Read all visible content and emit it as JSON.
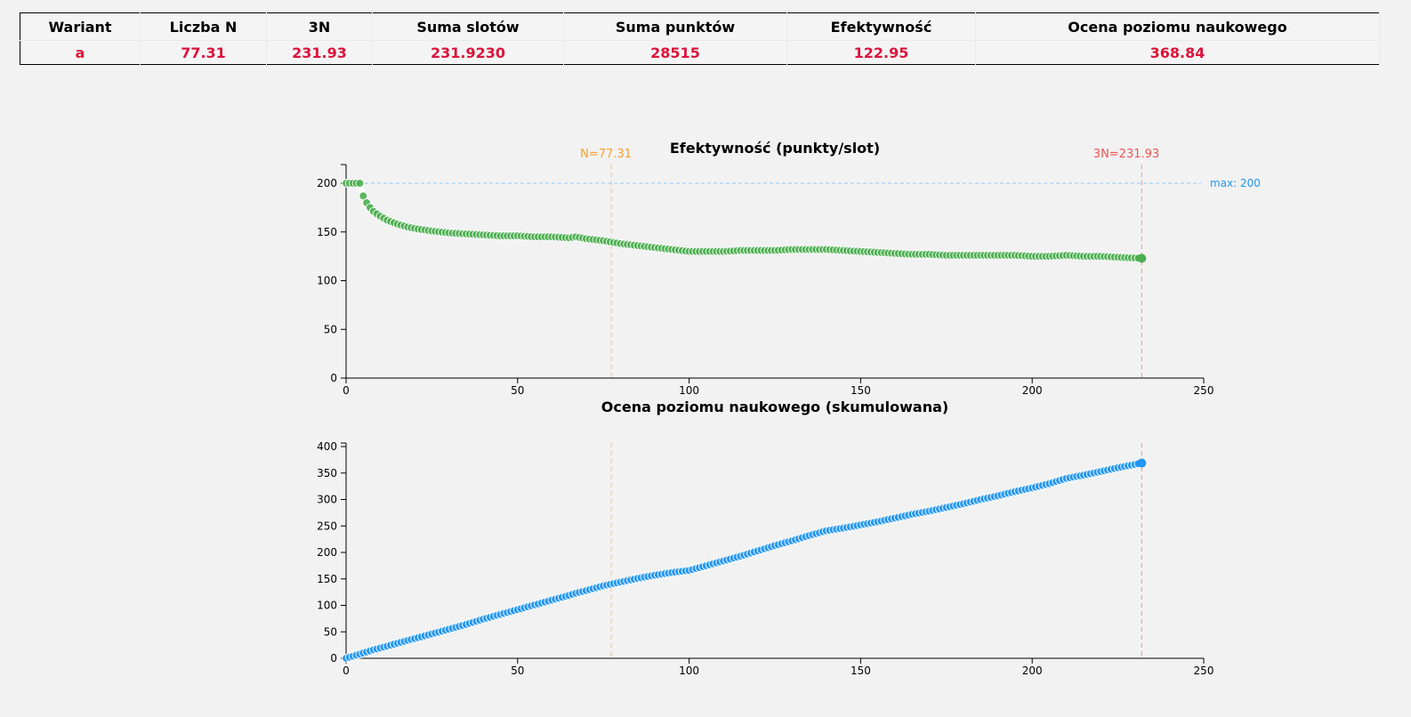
{
  "summary": {
    "headers": [
      "Wariant",
      "Liczba N",
      "3N",
      "Suma slotów",
      "Suma punktów",
      "Efektywność",
      "Ocena poziomu naukowego"
    ],
    "values": [
      "a",
      "77.31",
      "231.93",
      "231.9230",
      "28515",
      "122.95",
      "368.84"
    ]
  },
  "chart_data": [
    {
      "type": "scatter",
      "title": "Efektywność (punkty/slot)",
      "xlim": [
        0,
        250
      ],
      "ylim": [
        0,
        220
      ],
      "x_ticks": [
        "0",
        "50",
        "100",
        "150",
        "200",
        "250"
      ],
      "y_ticks": [
        "0",
        "50",
        "100",
        "150",
        "200"
      ],
      "color": "#4caf50",
      "x": [
        0,
        1,
        2,
        3,
        4,
        5,
        6,
        7,
        8,
        10,
        12,
        15,
        18,
        21,
        25,
        30,
        35,
        40,
        45,
        50,
        55,
        60,
        65,
        67,
        70,
        75,
        80,
        85,
        90,
        95,
        100,
        105,
        110,
        115,
        120,
        125,
        130,
        135,
        140,
        145,
        150,
        155,
        160,
        165,
        170,
        175,
        180,
        185,
        190,
        195,
        200,
        205,
        210,
        215,
        220,
        225,
        231.93
      ],
      "y": [
        200,
        200,
        200,
        200,
        200,
        187,
        180,
        175,
        171,
        166,
        162,
        158,
        155,
        153,
        151,
        149,
        148,
        147,
        146,
        146,
        145,
        145,
        144,
        145,
        143,
        141,
        138,
        136,
        134,
        132,
        130,
        130,
        130,
        131,
        131,
        131,
        132,
        132,
        132,
        131,
        130,
        129,
        128,
        127,
        127,
        126,
        126,
        126,
        126,
        126,
        125,
        125,
        126,
        125,
        125,
        124,
        122.95
      ],
      "annotations": {
        "n_line": {
          "x": 77.31,
          "label": "N=77.31",
          "color": "#f5a030"
        },
        "three_n_line": {
          "x": 231.93,
          "label": "3N=231.93",
          "color": "#ef5350"
        },
        "max_line": {
          "y": 200,
          "label": "max: 200",
          "color": "#2196f3"
        }
      }
    },
    {
      "type": "scatter",
      "title": "Ocena poziomu naukowego (skumulowana)",
      "xlim": [
        0,
        250
      ],
      "ylim": [
        0,
        400
      ],
      "x_ticks": [
        "0",
        "50",
        "100",
        "150",
        "200",
        "250"
      ],
      "y_ticks": [
        "0",
        "50",
        "100",
        "150",
        "200",
        "250",
        "300",
        "350",
        "400"
      ],
      "color": "#2196f3",
      "x": [
        0,
        1,
        2,
        3,
        4,
        5,
        6,
        7,
        8,
        10,
        12,
        15,
        18,
        21,
        25,
        30,
        35,
        40,
        45,
        50,
        55,
        60,
        65,
        67,
        70,
        75,
        80,
        85,
        90,
        95,
        100,
        105,
        110,
        115,
        120,
        125,
        130,
        135,
        140,
        145,
        150,
        155,
        160,
        165,
        170,
        175,
        180,
        185,
        190,
        195,
        200,
        205,
        210,
        215,
        220,
        225,
        231.93
      ],
      "y": [
        0,
        2,
        4,
        6,
        8,
        10,
        12,
        14,
        16,
        19.5,
        23,
        28.5,
        34,
        39,
        46,
        55,
        64,
        74,
        83,
        92,
        101,
        110,
        119,
        123,
        128,
        137,
        144,
        151,
        157,
        162,
        166,
        175,
        184,
        193,
        203,
        213,
        222,
        232,
        241,
        246,
        252,
        258,
        265,
        272,
        278,
        285,
        292,
        300,
        307,
        315,
        322,
        330,
        340,
        346,
        353,
        360,
        368.84
      ],
      "annotations": {
        "n_line": {
          "x": 77.31,
          "color": "#f5a030"
        },
        "three_n_line": {
          "x": 231.93,
          "color": "#ef5350"
        }
      }
    }
  ]
}
